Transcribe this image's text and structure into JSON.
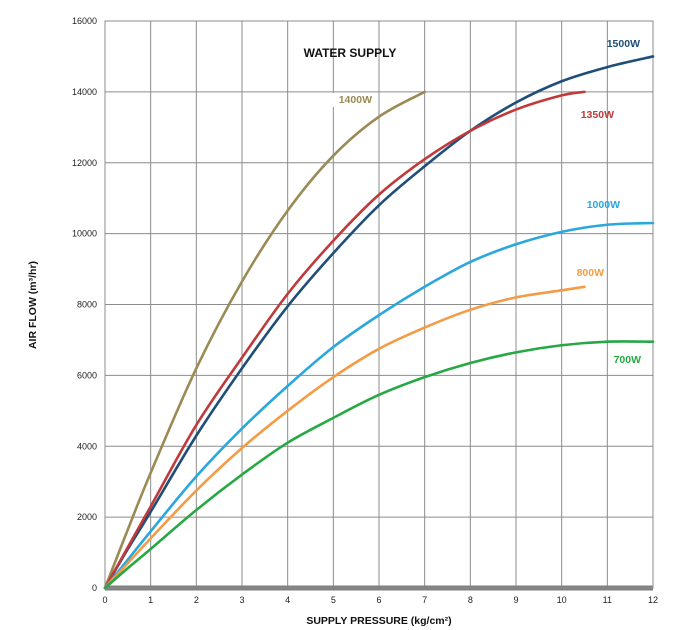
{
  "chart_data": {
    "type": "line",
    "title": "WATER SUPPLY",
    "xlabel": "SUPPLY PRESSURE (kg/cm²)",
    "ylabel": "AIR FLOW (m³/hr)",
    "xlim": [
      0,
      12
    ],
    "ylim": [
      0,
      16000
    ],
    "xticks": [
      0,
      1,
      2,
      3,
      4,
      5,
      6,
      7,
      8,
      9,
      10,
      11,
      12
    ],
    "yticks": [
      0,
      2000,
      4000,
      6000,
      8000,
      10000,
      12000,
      14000,
      16000
    ],
    "grid": true,
    "legend": "labels placed beside line ends",
    "series": [
      {
        "name": "1500W",
        "color": "#1f4e79",
        "x": [
          0,
          0.5,
          1,
          2,
          3,
          4,
          5,
          6,
          7,
          8,
          9,
          10,
          11,
          12
        ],
        "y": [
          0,
          1100,
          2150,
          4300,
          6200,
          7950,
          9450,
          10800,
          11900,
          12900,
          13700,
          14300,
          14700,
          15000
        ]
      },
      {
        "name": "1400W",
        "color": "#9a8a55",
        "x": [
          0,
          0.5,
          1,
          2,
          3,
          4,
          5,
          6,
          7
        ],
        "y": [
          0,
          1650,
          3250,
          6200,
          8650,
          10650,
          12200,
          13300,
          14000
        ]
      },
      {
        "name": "1350W",
        "color": "#c0393b",
        "x": [
          0,
          0.5,
          1,
          2,
          3,
          4,
          5,
          6,
          7,
          8,
          9,
          10,
          10.5
        ],
        "y": [
          0,
          1150,
          2300,
          4600,
          6500,
          8300,
          9800,
          11100,
          12100,
          12900,
          13500,
          13900,
          14000
        ]
      },
      {
        "name": "1000W",
        "color": "#2aa7dc",
        "x": [
          0,
          0.5,
          1,
          2,
          3,
          4,
          5,
          6,
          7,
          8,
          9,
          10,
          11,
          12
        ],
        "y": [
          0,
          800,
          1600,
          3150,
          4500,
          5700,
          6800,
          7700,
          8500,
          9200,
          9700,
          10050,
          10250,
          10300
        ]
      },
      {
        "name": "800W",
        "color": "#f39c45",
        "x": [
          0,
          0.5,
          1,
          2,
          3,
          4,
          5,
          6,
          7,
          8,
          9,
          10,
          10.5
        ],
        "y": [
          0,
          700,
          1400,
          2750,
          3950,
          5000,
          5950,
          6750,
          7350,
          7850,
          8200,
          8400,
          8500
        ]
      },
      {
        "name": "700W",
        "color": "#27a844",
        "x": [
          0,
          0.5,
          1,
          2,
          3,
          4,
          5,
          6,
          7,
          8,
          9,
          10,
          11,
          12
        ],
        "y": [
          0,
          560,
          1100,
          2200,
          3200,
          4100,
          4800,
          5450,
          5950,
          6350,
          6650,
          6850,
          6950,
          6950
        ]
      }
    ]
  },
  "colors": {
    "grid": "#8c8c8c",
    "baseline": "#808080",
    "background": "#ffffff",
    "label_1500W": "#1f4e79",
    "label_1400W": "#9a8a55",
    "label_1350W": "#c0393b",
    "label_1000W": "#2aa7dc",
    "label_800W": "#f39c45",
    "label_700W": "#27a844"
  }
}
